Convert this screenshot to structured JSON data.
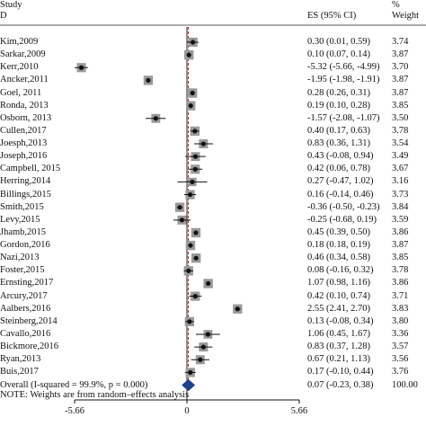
{
  "header": {
    "study_line1": "Study",
    "study_line2": "D",
    "es_label": "ES (95% CI)",
    "weight_line1": "%",
    "weight_line2": "Weight"
  },
  "note": "NOTE: Weights are from random–effects analysis",
  "chart_data": {
    "type": "forest",
    "x_ticks": [
      "-5.66",
      "0",
      "5.66"
    ],
    "xlim": [
      -5.66,
      5.66
    ],
    "null_line": 0,
    "studies": [
      {
        "label": "Kim,2009",
        "es_text": "0.30 (0.01, 0.59)",
        "weight_text": "3.74",
        "es": 0.3,
        "lo": 0.01,
        "hi": 0.59,
        "weight": 3.74
      },
      {
        "label": "Sarkar,2009",
        "es_text": "0.10 (0.07, 0.14)",
        "weight_text": "3.87",
        "es": 0.1,
        "lo": 0.07,
        "hi": 0.14,
        "weight": 3.87
      },
      {
        "label": "Kerr,2010",
        "es_text": "-5.32 (-5.66, -4.99)",
        "weight_text": "3.70",
        "es": -5.32,
        "lo": -5.66,
        "hi": -4.99,
        "weight": 3.7
      },
      {
        "label": "Ancker,2011",
        "es_text": "-1.95 (-1.98, -1.91)",
        "weight_text": "3.87",
        "es": -1.95,
        "lo": -1.98,
        "hi": -1.91,
        "weight": 3.87
      },
      {
        "label": "Goel, 2011",
        "es_text": "0.28 (0.26, 0.31)",
        "weight_text": "3.87",
        "es": 0.28,
        "lo": 0.26,
        "hi": 0.31,
        "weight": 3.87
      },
      {
        "label": "Ronda, 2013",
        "es_text": "0.19 (0.10, 0.28)",
        "weight_text": "3.85",
        "es": 0.19,
        "lo": 0.1,
        "hi": 0.28,
        "weight": 3.85
      },
      {
        "label": "Osborn, 2013",
        "es_text": "-1.57 (-2.08, -1.07)",
        "weight_text": "3.50",
        "es": -1.57,
        "lo": -2.08,
        "hi": -1.07,
        "weight": 3.5
      },
      {
        "label": "Cullen,2017",
        "es_text": "0.40 (0.17, 0.63)",
        "weight_text": "3.78",
        "es": 0.4,
        "lo": 0.17,
        "hi": 0.63,
        "weight": 3.78
      },
      {
        "label": "Joesph,2013",
        "es_text": "0.83 (0.36, 1.31)",
        "weight_text": "3.54",
        "es": 0.83,
        "lo": 0.36,
        "hi": 1.31,
        "weight": 3.54
      },
      {
        "label": "Joseph,2016",
        "es_text": "0.43 (-0.08, 0.94)",
        "weight_text": "3.49",
        "es": 0.43,
        "lo": -0.08,
        "hi": 0.94,
        "weight": 3.49
      },
      {
        "label": "Campbell, 2015",
        "es_text": "0.42 (0.06, 0.78)",
        "weight_text": "3.67",
        "es": 0.42,
        "lo": 0.06,
        "hi": 0.78,
        "weight": 3.67
      },
      {
        "label": "Herring,2014",
        "es_text": "0.27 (-0.47, 1.02)",
        "weight_text": "3.16",
        "es": 0.27,
        "lo": -0.47,
        "hi": 1.02,
        "weight": 3.16
      },
      {
        "label": "Billings,2015",
        "es_text": "0.16 (-0.14, 0.46)",
        "weight_text": "3.73",
        "es": 0.16,
        "lo": -0.14,
        "hi": 0.46,
        "weight": 3.73
      },
      {
        "label": "Smith,2015",
        "es_text": "-0.36 (-0.50, -0.23)",
        "weight_text": "3.84",
        "es": -0.36,
        "lo": -0.5,
        "hi": -0.23,
        "weight": 3.84
      },
      {
        "label": "Levy,2015",
        "es_text": "-0.25 (-0.68, 0.19)",
        "weight_text": "3.59",
        "es": -0.25,
        "lo": -0.68,
        "hi": 0.19,
        "weight": 3.59
      },
      {
        "label": "Jhamb,2015",
        "es_text": "0.45 (0.39, 0.50)",
        "weight_text": "3.86",
        "es": 0.45,
        "lo": 0.39,
        "hi": 0.5,
        "weight": 3.86
      },
      {
        "label": "Gordon,2016",
        "es_text": "0.18 (0.18, 0.19)",
        "weight_text": "3.87",
        "es": 0.18,
        "lo": 0.18,
        "hi": 0.19,
        "weight": 3.87
      },
      {
        "label": "Nazi,2013",
        "es_text": "0.46 (0.34, 0.58)",
        "weight_text": "3.85",
        "es": 0.46,
        "lo": 0.34,
        "hi": 0.58,
        "weight": 3.85
      },
      {
        "label": "Foster,2015",
        "es_text": "0.08 (-0.16, 0.32)",
        "weight_text": "3.78",
        "es": 0.08,
        "lo": -0.16,
        "hi": 0.32,
        "weight": 3.78
      },
      {
        "label": "Ernsting,2017",
        "es_text": "1.07 (0.98, 1.16)",
        "weight_text": "3.86",
        "es": 1.07,
        "lo": 0.98,
        "hi": 1.16,
        "weight": 3.86
      },
      {
        "label": "Arcury,2017",
        "es_text": "0.42 (0.10, 0.74)",
        "weight_text": "3.71",
        "es": 0.42,
        "lo": 0.1,
        "hi": 0.74,
        "weight": 3.71
      },
      {
        "label": "Aalbers,2016",
        "es_text": "2.55 (2.41, 2.70)",
        "weight_text": "3.83",
        "es": 2.55,
        "lo": 2.41,
        "hi": 2.7,
        "weight": 3.83
      },
      {
        "label": "Steinberg,2014",
        "es_text": "0.13 (-0.08, 0.34)",
        "weight_text": "3.80",
        "es": 0.13,
        "lo": -0.08,
        "hi": 0.34,
        "weight": 3.8
      },
      {
        "label": "Cavallo,2016",
        "es_text": "1.06 (0.45, 1.67)",
        "weight_text": "3.36",
        "es": 1.06,
        "lo": 0.45,
        "hi": 1.67,
        "weight": 3.36
      },
      {
        "label": "Bickmore,2016",
        "es_text": "0.83 (0.37, 1.28)",
        "weight_text": "3.57",
        "es": 0.83,
        "lo": 0.37,
        "hi": 1.28,
        "weight": 3.57
      },
      {
        "label": "Ryan,2013",
        "es_text": "0.67 (0.21, 1.13)",
        "weight_text": "3.56",
        "es": 0.67,
        "lo": 0.21,
        "hi": 1.13,
        "weight": 3.56
      },
      {
        "label": "Buis,2017",
        "es_text": "0.17 (-0.10, 0.44)",
        "weight_text": "3.76",
        "es": 0.17,
        "lo": -0.1,
        "hi": 0.44,
        "weight": 3.76
      }
    ],
    "overall": {
      "label": "Overall  (I-squared = 99.9%, p = 0.000)",
      "es_text": "0.07 (-0.23, 0.38)",
      "weight_text": "100.00",
      "es": 0.07,
      "lo": -0.23,
      "hi": 0.38
    }
  }
}
